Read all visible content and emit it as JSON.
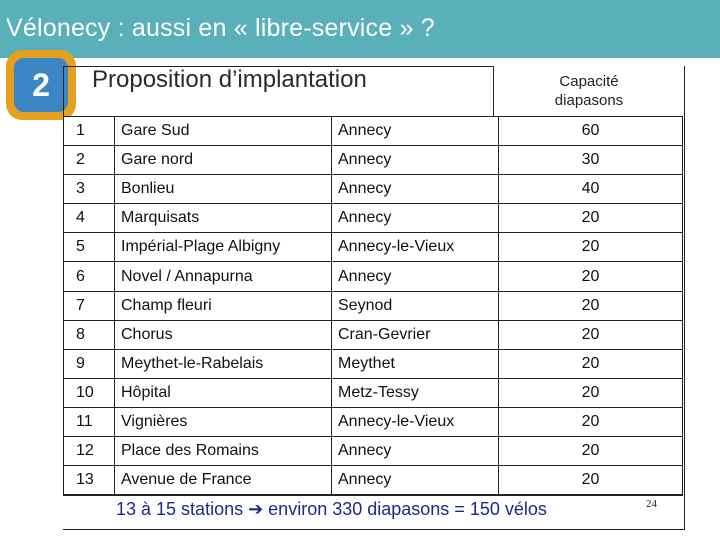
{
  "header": {
    "title": "Vélonecy : aussi en « libre-service » ?"
  },
  "badge": {
    "number": "2"
  },
  "subtitle": "Proposition d’implantation",
  "capacity_header": {
    "line1": "Capacité",
    "line2": "diapasons"
  },
  "rows": [
    {
      "num": "1",
      "name": "Gare Sud",
      "city": "Annecy",
      "cap": "60"
    },
    {
      "num": "2",
      "name": "Gare nord",
      "city": "Annecy",
      "cap": "30"
    },
    {
      "num": "3",
      "name": "Bonlieu",
      "city": "Annecy",
      "cap": "40"
    },
    {
      "num": "4",
      "name": "Marquisats",
      "city": "Annecy",
      "cap": "20"
    },
    {
      "num": "5",
      "name": "Impérial-Plage Albigny",
      "city": "Annecy-le-Vieux",
      "cap": "20"
    },
    {
      "num": "6",
      "name": "Novel / Annapurna",
      "city": "Annecy",
      "cap": "20"
    },
    {
      "num": "7",
      "name": "Champ fleuri",
      "city": "Seynod",
      "cap": "20"
    },
    {
      "num": "8",
      "name": "Chorus",
      "city": "Cran-Gevrier",
      "cap": "20"
    },
    {
      "num": "9",
      "name": "Meythet-le-Rabelais",
      "city": "Meythet",
      "cap": "20"
    },
    {
      "num": "10",
      "name": "Hôpital",
      "city": "Metz-Tessy",
      "cap": "20"
    },
    {
      "num": "11",
      "name": "Vignières",
      "city": "Annecy-le-Vieux",
      "cap": "20"
    },
    {
      "num": "12",
      "name": "Place des Romains",
      "city": "Annecy",
      "cap": "20"
    },
    {
      "num": "13",
      "name": "Avenue de France",
      "city": "Annecy",
      "cap": "20"
    }
  ],
  "footer": {
    "summary": "13 à 15 stations ➔ environ 330 diapasons = 150 vélos"
  },
  "page_number": "24",
  "colors": {
    "header_bg": "#5ab0b8",
    "badge_outer": "#e6a020",
    "badge_inner": "#3d86c5",
    "footer_text": "#1a2a8a"
  }
}
